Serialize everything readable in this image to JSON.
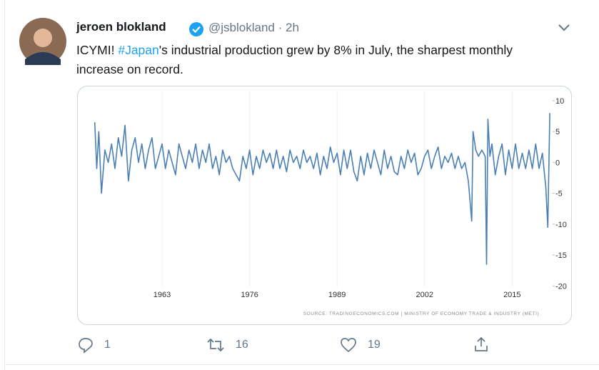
{
  "tweet": {
    "name": "jeroen blokland",
    "handle": "@jsblokland",
    "time": "2h",
    "text_parts": [
      "ICYMI! ",
      "#Japan",
      "'s industrial production grew by 8% in July, the sharpest monthly increase on record."
    ],
    "replies": 1,
    "retweets": 16,
    "likes": 19
  },
  "chart_data": {
    "type": "line",
    "color": "#4a7fb5",
    "source": "SOURCE: TRADINGECONOMICS.COM | MINISTRY OF ECONOMY TRADE & INDUSTRY (METI)",
    "x": [
      1953.0,
      1953.3,
      1953.6,
      1954.0,
      1954.5,
      1955.0,
      1955.5,
      1956.0,
      1956.5,
      1957.0,
      1957.5,
      1958.0,
      1958.5,
      1959.0,
      1959.5,
      1960.0,
      1960.5,
      1961.0,
      1961.5,
      1962.0,
      1962.5,
      1963.0,
      1963.5,
      1964.0,
      1964.5,
      1965.0,
      1965.5,
      1966.0,
      1966.5,
      1967.0,
      1967.5,
      1968.0,
      1968.5,
      1969.0,
      1969.5,
      1970.0,
      1970.5,
      1971.0,
      1971.5,
      1972.0,
      1972.5,
      1973.0,
      1973.5,
      1974.0,
      1974.5,
      1975.0,
      1975.5,
      1976.0,
      1976.5,
      1977.0,
      1977.5,
      1978.0,
      1978.5,
      1979.0,
      1979.5,
      1980.0,
      1980.5,
      1981.0,
      1981.5,
      1982.0,
      1982.5,
      1983.0,
      1983.5,
      1984.0,
      1984.5,
      1985.0,
      1985.5,
      1986.0,
      1986.5,
      1987.0,
      1987.5,
      1988.0,
      1988.5,
      1989.0,
      1989.5,
      1990.0,
      1990.5,
      1991.0,
      1991.5,
      1992.0,
      1992.5,
      1993.0,
      1993.5,
      1994.0,
      1994.5,
      1995.0,
      1995.5,
      1996.0,
      1996.5,
      1997.0,
      1997.5,
      1998.0,
      1998.5,
      1999.0,
      1999.5,
      2000.0,
      2000.5,
      2001.0,
      2001.5,
      2002.0,
      2002.5,
      2003.0,
      2003.5,
      2004.0,
      2004.5,
      2005.0,
      2005.5,
      2006.0,
      2006.5,
      2007.0,
      2007.5,
      2008.0,
      2008.5,
      2009.0,
      2009.2,
      2009.6,
      2010.0,
      2010.5,
      2011.0,
      2011.2,
      2011.4,
      2011.7,
      2012.0,
      2012.5,
      2013.0,
      2013.5,
      2014.0,
      2014.5,
      2015.0,
      2015.5,
      2016.0,
      2016.5,
      2017.0,
      2017.5,
      2018.0,
      2018.5,
      2019.0,
      2019.5,
      2020.0,
      2020.3,
      2020.6
    ],
    "values": [
      6.5,
      -1,
      5,
      -5,
      2,
      0,
      3,
      -1,
      4,
      1,
      6,
      -3,
      2,
      4,
      0,
      3,
      -1,
      2,
      4,
      -1,
      1,
      3,
      -1,
      2,
      0,
      -2,
      3,
      1,
      -1,
      2,
      0,
      3,
      -1,
      2,
      0,
      3,
      -1,
      1,
      -2,
      2,
      0,
      1,
      -1,
      -2,
      -3,
      1,
      -1,
      2,
      -2,
      1,
      -1,
      2,
      0,
      1.5,
      -1,
      2,
      -1,
      1,
      -1.5,
      2,
      0,
      1,
      -1,
      2,
      0,
      1,
      -1,
      1.5,
      -2,
      1,
      -1,
      2.5,
      0,
      1.5,
      -2,
      2,
      -1,
      2,
      -1.5,
      -3,
      1,
      -2,
      1.5,
      -1,
      2,
      0,
      -2,
      2,
      -1,
      1,
      -1.5,
      -2,
      1,
      -1,
      2,
      0,
      1.5,
      -2,
      -1,
      1,
      2,
      -1,
      1,
      2.5,
      -1,
      1,
      0,
      1.5,
      -1,
      1,
      -1,
      0,
      -3,
      -9.5,
      5,
      2,
      1,
      2,
      1,
      -16.5,
      7,
      1,
      3,
      -2,
      1,
      3,
      -2,
      2,
      -1,
      3,
      -1,
      1.5,
      -1,
      2,
      -1,
      3,
      -1,
      1.5,
      -4,
      -10.5,
      8
    ],
    "xlim": [
      1952.5,
      2020.8
    ],
    "xticks": [
      1963,
      1976,
      1989,
      2002,
      2015
    ],
    "ylim": [
      -20.2,
      11.5
    ],
    "yticks": [
      10,
      5,
      0,
      -5,
      -10,
      -15,
      -20
    ],
    "grid": true
  }
}
